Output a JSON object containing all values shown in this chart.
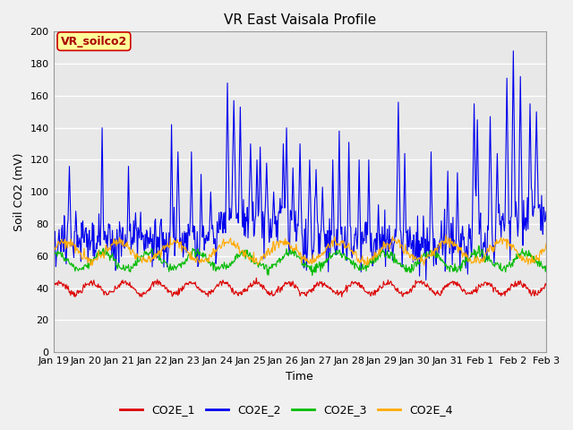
{
  "title": "VR East Vaisala Profile",
  "xlabel": "Time",
  "ylabel": "Soil CO2 (mV)",
  "annotation": "VR_soilco2",
  "ylim": [
    0,
    200
  ],
  "yticks": [
    0,
    20,
    40,
    60,
    80,
    100,
    120,
    140,
    160,
    180,
    200
  ],
  "xtick_labels": [
    "Jan 19",
    "Jan 20",
    "Jan 21",
    "Jan 22",
    "Jan 23",
    "Jan 24",
    "Jan 25",
    "Jan 26",
    "Jan 27",
    "Jan 28",
    "Jan 29",
    "Jan 30",
    "Jan 31",
    "Feb 1",
    "Feb 2",
    "Feb 3"
  ],
  "series_colors": [
    "#dd0000",
    "#0000ee",
    "#00bb00",
    "#ffaa00"
  ],
  "series_names": [
    "CO2E_1",
    "CO2E_2",
    "CO2E_3",
    "CO2E_4"
  ],
  "plot_bg": "#e8e8e8",
  "fig_bg": "#f0f0f0",
  "grid_color": "#ffffff",
  "annotation_bg": "#ffff99",
  "annotation_border": "#cc0000",
  "annotation_text_color": "#aa0000",
  "title_fontsize": 11,
  "axis_label_fontsize": 9,
  "tick_fontsize": 8,
  "legend_fontsize": 9
}
